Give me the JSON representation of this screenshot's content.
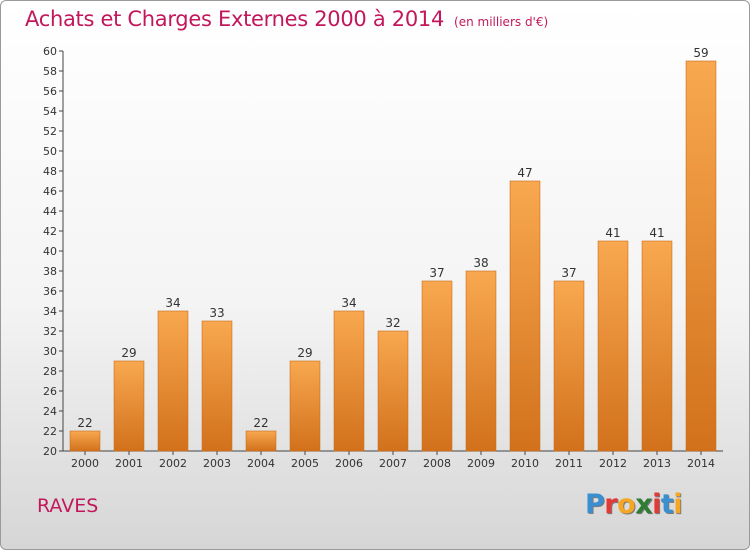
{
  "header": {
    "title": "Achats et Charges Externes 2000 à 2014",
    "subtitle": "(en milliers d'€)"
  },
  "footer": {
    "commune": "RAVES",
    "logo": {
      "letters": [
        "P",
        "r",
        "o",
        "x",
        "i",
        "t",
        "i"
      ],
      "colors": [
        "#3a8fd0",
        "#e53935",
        "#f5a623",
        "#2e7d32",
        "#e53935",
        "#3a8fd0",
        "#f5a623"
      ]
    }
  },
  "colors": {
    "bar_top": "#f8a850",
    "bar_bottom": "#d2711c",
    "accent": "#c2185b",
    "axis": "#444444"
  },
  "chart_data": {
    "type": "bar",
    "title": "Achats et Charges Externes 2000 à 2014",
    "subtitle": "(en milliers d'€)",
    "categories": [
      "2000",
      "2001",
      "2002",
      "2003",
      "2004",
      "2005",
      "2006",
      "2007",
      "2008",
      "2009",
      "2010",
      "2011",
      "2012",
      "2013",
      "2014"
    ],
    "values": [
      22,
      29,
      34,
      33,
      22,
      29,
      34,
      32,
      37,
      38,
      47,
      37,
      41,
      41,
      59
    ],
    "ylim": [
      20,
      60
    ],
    "ytick_step": 2,
    "grid": false,
    "legend": "none"
  }
}
